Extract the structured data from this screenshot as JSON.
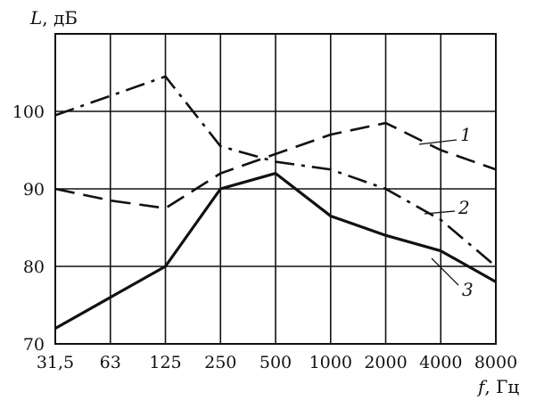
{
  "chart_data": {
    "type": "line",
    "x": [
      "31,5",
      "63",
      "125",
      "250",
      "500",
      "1000",
      "2000",
      "4000",
      "8000"
    ],
    "ylim": [
      70,
      110
    ],
    "yticks": [
      70,
      80,
      90,
      100
    ],
    "ylabel": {
      "symbol": "L",
      "unit": ", дБ"
    },
    "xlabel": {
      "symbol": "f",
      "unit": ", Гц"
    },
    "grid": true,
    "series": [
      {
        "name": "1",
        "style": "dashed",
        "values": [
          90,
          88.5,
          87.5,
          92,
          94.5,
          97,
          98.5,
          95,
          92.5
        ]
      },
      {
        "name": "2",
        "style": "dash-dot",
        "values": [
          99.5,
          102,
          104.5,
          95.5,
          93.5,
          92.5,
          90,
          86,
          80
        ]
      },
      {
        "name": "3",
        "style": "solid",
        "values": [
          72,
          76,
          80,
          90,
          92,
          86.5,
          84,
          82,
          78
        ]
      }
    ]
  }
}
